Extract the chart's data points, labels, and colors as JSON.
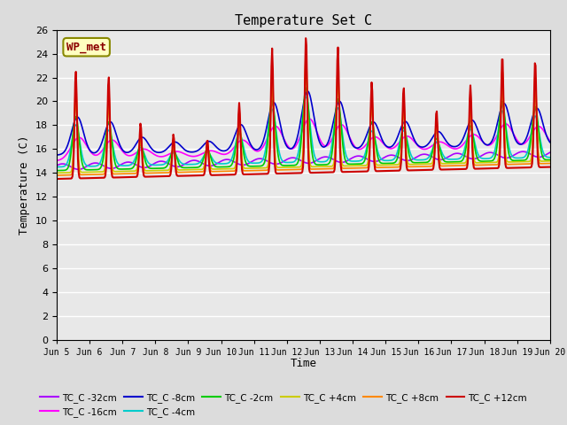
{
  "title": "Temperature Set C",
  "xlabel": "Time",
  "ylabel": "Temperature (C)",
  "ylim": [
    0,
    26
  ],
  "yticks": [
    0,
    2,
    4,
    6,
    8,
    10,
    12,
    14,
    16,
    18,
    20,
    22,
    24,
    26
  ],
  "x_tick_days": [
    5,
    6,
    7,
    8,
    9,
    10,
    11,
    12,
    13,
    14,
    15,
    16,
    17,
    18,
    19,
    20
  ],
  "annotation_text": "WP_met",
  "annotation_color": "#8B0000",
  "annotation_bg": "#FFFFC0",
  "annotation_border": "#888800",
  "series": [
    {
      "label": "TC_C -32cm",
      "color": "#AA00FF",
      "linewidth": 1.2
    },
    {
      "label": "TC_C -16cm",
      "color": "#FF00FF",
      "linewidth": 1.2
    },
    {
      "label": "TC_C -8cm",
      "color": "#0000CC",
      "linewidth": 1.2
    },
    {
      "label": "TC_C -4cm",
      "color": "#00CCCC",
      "linewidth": 1.2
    },
    {
      "label": "TC_C -2cm",
      "color": "#00CC00",
      "linewidth": 1.2
    },
    {
      "label": "TC_C +4cm",
      "color": "#CCCC00",
      "linewidth": 1.2
    },
    {
      "label": "TC_C +8cm",
      "color": "#FF8800",
      "linewidth": 1.2
    },
    {
      "label": "TC_C +12cm",
      "color": "#CC0000",
      "linewidth": 1.5
    }
  ],
  "bg_color": "#DCDCDC",
  "plot_bg": "#E8E8E8",
  "grid_color": "#FFFFFF",
  "font_family": "monospace",
  "n_days": 15,
  "pts_per_day": 48,
  "peak_times": [
    0.58,
    1.58,
    2.55,
    3.55,
    4.58,
    5.55,
    6.55,
    7.58,
    8.55,
    9.58,
    10.55,
    11.55,
    12.58,
    13.55,
    14.55
  ],
  "peak_amps_p12": [
    9.0,
    8.5,
    4.5,
    3.5,
    3.0,
    6.0,
    10.5,
    11.5,
    10.5,
    7.5,
    7.0,
    5.0,
    7.0,
    9.5,
    9.0
  ],
  "peak_amps_p8": [
    7.5,
    7.0,
    3.5,
    2.5,
    2.5,
    5.0,
    8.5,
    10.0,
    8.5,
    6.0,
    5.5,
    4.0,
    5.5,
    8.0,
    7.5
  ],
  "peak_amps_p4": [
    6.0,
    5.5,
    2.5,
    2.0,
    2.0,
    4.0,
    7.0,
    8.0,
    7.0,
    5.0,
    4.5,
    3.0,
    4.5,
    6.5,
    6.0
  ],
  "peak_amps_m2": [
    4.5,
    4.0,
    2.0,
    1.5,
    1.5,
    3.0,
    5.5,
    6.5,
    5.5,
    3.5,
    3.0,
    2.0,
    3.0,
    5.0,
    4.5
  ],
  "peak_amps_m4": [
    3.5,
    3.0,
    1.5,
    1.0,
    1.0,
    2.5,
    4.5,
    5.5,
    4.5,
    2.5,
    2.5,
    1.5,
    2.5,
    4.0,
    3.5
  ],
  "base_p12": 15.5,
  "base_p8": 15.2,
  "base_p4": 15.0,
  "base_m2": 15.0,
  "base_m4": 15.0,
  "sigma_surface": 0.04,
  "sigma_deep": 0.12
}
